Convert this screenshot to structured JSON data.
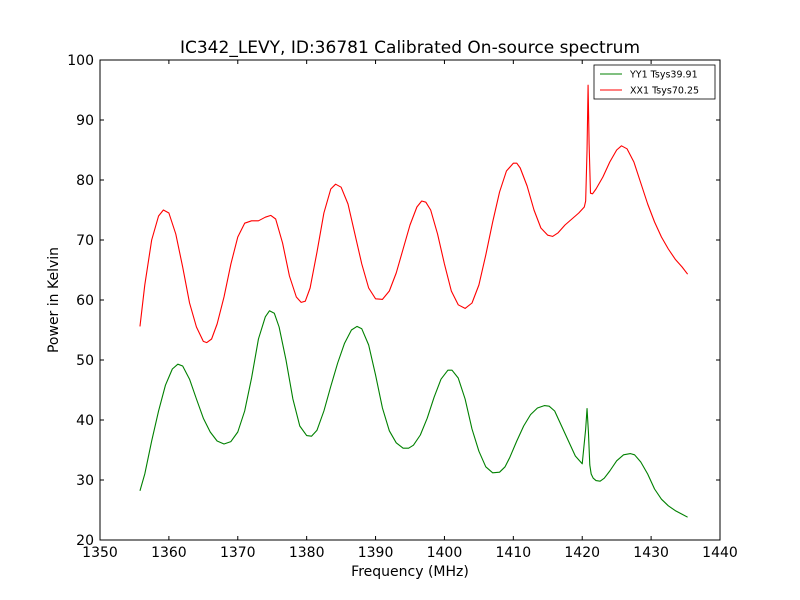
{
  "chart_data": {
    "type": "line",
    "title": "IC342_LEVY, ID:36781 Calibrated On-source spectrum",
    "xlabel": "Frequency (MHz)",
    "ylabel": "Power in Kelvin",
    "xlim": [
      1350,
      1440
    ],
    "ylim": [
      20,
      100
    ],
    "xticks": [
      1350,
      1360,
      1370,
      1380,
      1390,
      1400,
      1410,
      1420,
      1430,
      1440
    ],
    "yticks": [
      20,
      30,
      40,
      50,
      60,
      70,
      80,
      90,
      100
    ],
    "grid": false,
    "legend_position": "top-right",
    "series": [
      {
        "name": "YY1 Tsys39.91",
        "color": "#008000",
        "x": [
          1355.8,
          1356.5,
          1357.5,
          1358.5,
          1359.5,
          1360.5,
          1361.3,
          1362.0,
          1363.0,
          1364.0,
          1365.0,
          1366.0,
          1367.0,
          1368.0,
          1369.0,
          1370.0,
          1371.0,
          1372.0,
          1373.0,
          1374.0,
          1374.6,
          1375.3,
          1376.0,
          1377.0,
          1378.0,
          1379.0,
          1380.0,
          1380.7,
          1381.5,
          1382.5,
          1383.5,
          1384.5,
          1385.5,
          1386.5,
          1387.3,
          1388.0,
          1389.0,
          1390.0,
          1391.0,
          1392.0,
          1393.0,
          1394.0,
          1394.8,
          1395.5,
          1396.5,
          1397.5,
          1398.5,
          1399.5,
          1400.5,
          1401.1,
          1402.0,
          1403.0,
          1404.0,
          1405.0,
          1406.0,
          1407.0,
          1408.0,
          1408.8,
          1409.5,
          1410.5,
          1411.5,
          1412.5,
          1413.5,
          1414.5,
          1415.2,
          1416.0,
          1417.0,
          1418.0,
          1419.0,
          1420.0,
          1420.5,
          1420.7,
          1420.9,
          1421.1,
          1421.3,
          1421.6,
          1422.0,
          1422.6,
          1423.2,
          1424.0,
          1425.0,
          1426.0,
          1427.0,
          1427.6,
          1428.5,
          1429.5,
          1430.5,
          1431.5,
          1432.5,
          1433.5,
          1434.5,
          1435.3
        ],
        "y": [
          28.2,
          31.0,
          36.5,
          41.5,
          45.8,
          48.5,
          49.3,
          49.0,
          46.8,
          43.5,
          40.3,
          38.0,
          36.5,
          36.0,
          36.4,
          38.0,
          41.5,
          47.0,
          53.5,
          57.2,
          58.2,
          57.8,
          55.5,
          50.0,
          43.5,
          39.0,
          37.4,
          37.3,
          38.3,
          41.5,
          45.6,
          49.5,
          52.8,
          55.0,
          55.6,
          55.2,
          52.5,
          47.5,
          42.0,
          38.2,
          36.2,
          35.3,
          35.3,
          35.8,
          37.5,
          40.3,
          43.8,
          46.8,
          48.3,
          48.3,
          47.0,
          43.5,
          38.5,
          34.8,
          32.2,
          31.2,
          31.3,
          32.2,
          33.8,
          36.5,
          39.0,
          40.9,
          42.0,
          42.4,
          42.3,
          41.5,
          39.0,
          36.5,
          34.0,
          32.7,
          38.5,
          41.9,
          38.0,
          32.5,
          31.0,
          30.3,
          29.9,
          29.8,
          30.3,
          31.5,
          33.2,
          34.2,
          34.4,
          34.2,
          33.0,
          31.0,
          28.5,
          26.8,
          25.7,
          24.9,
          24.3,
          23.8
        ]
      },
      {
        "name": "XX1 Tsys70.25",
        "color": "#ff0000",
        "x": [
          1355.8,
          1356.5,
          1357.5,
          1358.5,
          1359.2,
          1360.0,
          1361.0,
          1362.0,
          1363.0,
          1364.0,
          1365.0,
          1365.5,
          1366.2,
          1367.0,
          1368.0,
          1369.0,
          1370.0,
          1371.0,
          1372.0,
          1373.0,
          1374.0,
          1374.8,
          1375.5,
          1376.5,
          1377.5,
          1378.5,
          1379.2,
          1379.8,
          1380.5,
          1381.5,
          1382.5,
          1383.5,
          1384.2,
          1385.0,
          1386.0,
          1387.0,
          1388.0,
          1389.0,
          1390.0,
          1391.0,
          1392.0,
          1393.0,
          1394.0,
          1395.0,
          1396.0,
          1396.7,
          1397.3,
          1398.0,
          1399.0,
          1400.0,
          1401.0,
          1402.0,
          1403.0,
          1404.0,
          1405.0,
          1406.0,
          1407.0,
          1408.0,
          1409.0,
          1410.0,
          1410.5,
          1411.0,
          1412.0,
          1413.0,
          1414.0,
          1415.0,
          1415.7,
          1416.5,
          1417.5,
          1418.5,
          1419.5,
          1420.3,
          1420.5,
          1420.7,
          1420.85,
          1421.0,
          1421.2,
          1421.5,
          1422.0,
          1423.0,
          1424.0,
          1425.0,
          1425.7,
          1426.5,
          1427.5,
          1428.5,
          1429.5,
          1430.5,
          1431.5,
          1432.5,
          1433.5,
          1434.5,
          1435.3
        ],
        "y": [
          55.6,
          62.5,
          70.0,
          74.0,
          75.0,
          74.5,
          71.0,
          65.5,
          59.5,
          55.5,
          53.1,
          52.9,
          53.5,
          56.0,
          60.5,
          66.0,
          70.5,
          72.8,
          73.2,
          73.2,
          73.8,
          74.1,
          73.5,
          69.5,
          64.0,
          60.5,
          59.6,
          59.8,
          62.0,
          68.0,
          74.5,
          78.5,
          79.3,
          78.8,
          76.0,
          71.0,
          66.0,
          62.0,
          60.2,
          60.1,
          61.5,
          64.5,
          68.5,
          72.5,
          75.5,
          76.5,
          76.3,
          75.0,
          71.0,
          66.0,
          61.5,
          59.2,
          58.6,
          59.5,
          62.5,
          67.5,
          73.0,
          78.0,
          81.5,
          82.8,
          82.8,
          82.0,
          79.0,
          75.0,
          72.0,
          70.8,
          70.6,
          71.2,
          72.5,
          73.5,
          74.5,
          75.5,
          76.5,
          85.0,
          95.8,
          86.0,
          77.8,
          77.7,
          78.5,
          80.5,
          83.0,
          85.0,
          85.7,
          85.2,
          83.0,
          79.5,
          76.0,
          73.0,
          70.5,
          68.5,
          66.8,
          65.5,
          64.3
        ]
      }
    ]
  }
}
